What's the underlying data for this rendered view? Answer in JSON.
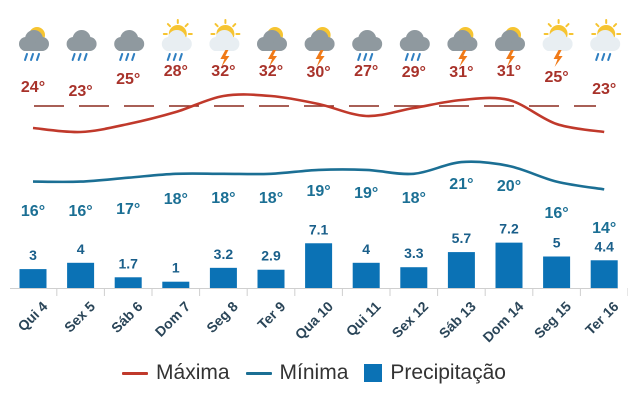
{
  "chart_data": {
    "type": "bar",
    "categories": [
      "Qui 4",
      "Sex 5",
      "Sáb 6",
      "Dom 7",
      "Seg 8",
      "Ter 9",
      "Qua 10",
      "Qui 11",
      "Sex 12",
      "Sáb 13",
      "Dom 14",
      "Seg 15",
      "Ter 16"
    ],
    "series": [
      {
        "name": "Máxima",
        "type": "line",
        "color": "#c0392b",
        "values": [
          24,
          23,
          25,
          28,
          32,
          32,
          30,
          27,
          29,
          31,
          31,
          25,
          23
        ],
        "labels": [
          "24°",
          "23°",
          "25°",
          "28°",
          "32°",
          "32°",
          "30°",
          "27°",
          "29°",
          "31°",
          "31°",
          "25°",
          "23°"
        ]
      },
      {
        "name": "Mínima",
        "type": "line",
        "color": "#1b6f94",
        "values": [
          16,
          16,
          17,
          18,
          18,
          18,
          19,
          19,
          18,
          21,
          20,
          16,
          14
        ],
        "labels": [
          "16°",
          "16°",
          "17°",
          "18°",
          "18°",
          "18°",
          "19°",
          "19°",
          "18°",
          "21°",
          "20°",
          "16°",
          "14°"
        ]
      },
      {
        "name": "Precipitação",
        "type": "bar",
        "color": "#0b72b5",
        "values": [
          3,
          4,
          1.7,
          1,
          3.2,
          2.9,
          7.1,
          4,
          3.3,
          5.7,
          7.2,
          5,
          4.4
        ],
        "labels": [
          "3",
          "4",
          "1.7",
          "1",
          "3.2",
          "2.9",
          "7.1",
          "4",
          "3.3",
          "5.7",
          "7.2",
          "5",
          "4.4"
        ]
      }
    ],
    "icons": [
      "cloud-sun-rain-icon",
      "cloud-rain-icon",
      "cloud-rain-icon",
      "sun-cloud-rain-icon",
      "sun-cloud-storm-icon",
      "cloud-storm-icon",
      "cloud-storm-icon",
      "cloud-rain-icon",
      "cloud-rain-icon",
      "cloud-storm-icon",
      "cloud-storm-icon",
      "sun-cloud-storm-icon",
      "sun-cloud-rain-icon"
    ],
    "reference_line": {
      "value": 30,
      "style": "dashed",
      "color": "#8b2a1f"
    },
    "legend_position": "bottom-center",
    "grid": false
  },
  "legend": {
    "max_label": "Máxima",
    "min_label": "Mínima",
    "precip_label": "Precipitação"
  }
}
